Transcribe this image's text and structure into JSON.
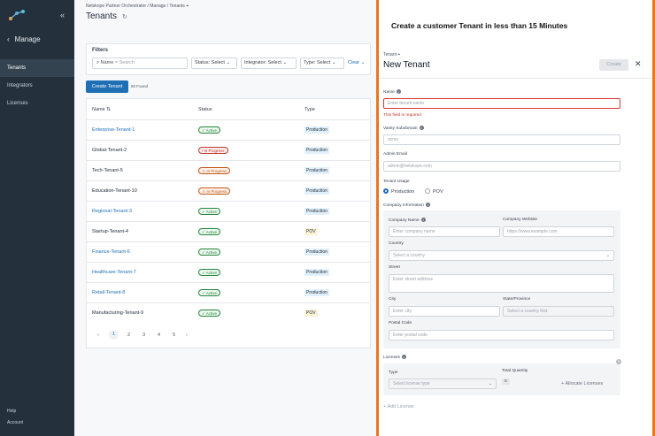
{
  "sidebar": {
    "section_title": "Manage",
    "items": [
      {
        "label": "Tenants",
        "active": true
      },
      {
        "label": "Integrators",
        "active": false
      },
      {
        "label": "Licenses",
        "active": false
      }
    ],
    "footer": [
      "Help",
      "Account"
    ]
  },
  "main": {
    "breadcrumb": "Netskope Partner Orchestrator / Manage / Tenants",
    "title": "Tenants",
    "filters": {
      "title": "Filters",
      "search_label": "Name",
      "search_placeholder": "= Search",
      "selects": [
        {
          "label": "Status: Select"
        },
        {
          "label": "Integrator: Select"
        },
        {
          "label": "Type: Select"
        }
      ],
      "clear": "Clear"
    },
    "create_button": "Create Tenant",
    "found": "50 Found",
    "columns": [
      "Name",
      "Status",
      "Type"
    ],
    "rows": [
      {
        "name": "Enterprise-Tenant-1",
        "link": true,
        "status": "Active",
        "status_kind": "ok",
        "type": "Production"
      },
      {
        "name": "Global-Tenant-2",
        "link": false,
        "status": "In Progress",
        "status_kind": "bad",
        "type": "Production"
      },
      {
        "name": "Tech-Tenant-5",
        "link": false,
        "status": "In Progress",
        "status_kind": "warn",
        "type": "Production"
      },
      {
        "name": "Education-Tenant-10",
        "link": false,
        "status": "In Progress",
        "status_kind": "warn",
        "type": "Production"
      },
      {
        "name": "Regional-Tenant-3",
        "link": true,
        "status": "Active",
        "status_kind": "ok",
        "type": "Production"
      },
      {
        "name": "Startup-Tenant-4",
        "link": false,
        "status": "Active",
        "status_kind": "ok",
        "type": "POV"
      },
      {
        "name": "Finance-Tenant-6",
        "link": true,
        "status": "Active",
        "status_kind": "ok",
        "type": "Production"
      },
      {
        "name": "Healthcare-Tenant-7",
        "link": true,
        "status": "Active",
        "status_kind": "ok",
        "type": "Production"
      },
      {
        "name": "Retail-Tenant-8",
        "link": true,
        "status": "Active",
        "status_kind": "ok",
        "type": "Production"
      },
      {
        "name": "Manufacturing-Tenant-9",
        "link": false,
        "status": "Active",
        "status_kind": "ok",
        "type": "POV"
      }
    ],
    "pagination": {
      "pages": [
        "1",
        "2",
        "3",
        "4",
        "5"
      ],
      "current": "1"
    }
  },
  "panel": {
    "promo": "Create a customer Tenant in less than 15 Minutes",
    "eyebrow": "Tenant",
    "title": "New Tenant",
    "create": "Create",
    "name": {
      "label": "Name",
      "placeholder": "Enter tenant name",
      "error": "This field is required"
    },
    "subdomain": {
      "label": "Vanity Subdomain",
      "placeholder": "acme"
    },
    "email": {
      "label": "Admin Email",
      "placeholder": "admin@netskope.com"
    },
    "usage": {
      "label": "Tenant Usage",
      "options": [
        "Production",
        "POV"
      ],
      "selected": "Production"
    },
    "company": {
      "label": "Company Information",
      "name_label": "Company Name",
      "name_placeholder": "Enter company name",
      "website_label": "Company Website",
      "website_placeholder": "https://www.example.com",
      "country_label": "Country",
      "country_placeholder": "Select a country",
      "street_label": "Street",
      "street_placeholder": "Enter street address",
      "city_label": "City",
      "city_placeholder": "Enter city",
      "state_label": "State/Province",
      "state_placeholder": "Select a country first",
      "postal_label": "Postal Code",
      "postal_placeholder": "Enter postal code"
    },
    "licenses": {
      "label": "Licenses",
      "type_label": "Type",
      "type_placeholder": "Select license type",
      "qty_label": "Total Quantity",
      "qty_value": "0",
      "allocate": "Allocate Licenses",
      "add": "Add License"
    }
  },
  "colors": {
    "accent": "#1f6fb5",
    "sidebar": "#24313c",
    "highlight_border": "#e87722"
  }
}
